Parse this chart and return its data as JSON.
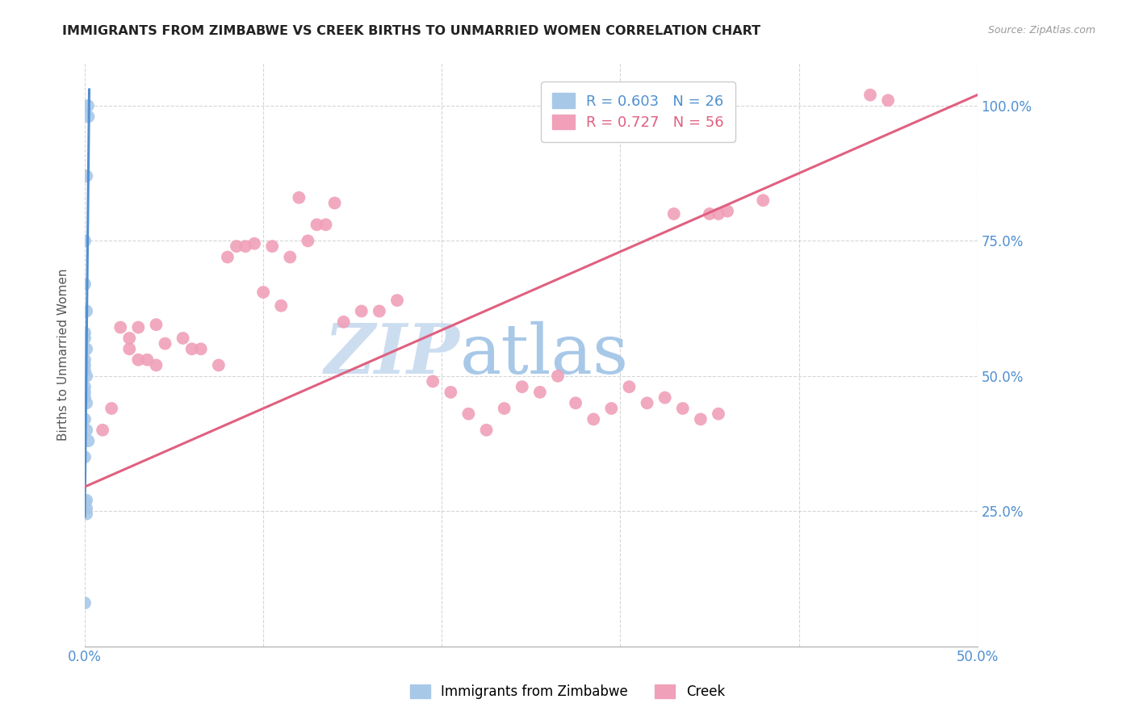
{
  "title": "IMMIGRANTS FROM ZIMBABWE VS CREEK BIRTHS TO UNMARRIED WOMEN CORRELATION CHART",
  "source": "Source: ZipAtlas.com",
  "ylabel": "Births to Unmarried Women",
  "legend_label1": "Immigrants from Zimbabwe",
  "legend_label2": "Creek",
  "R1": 0.603,
  "N1": 26,
  "R2": 0.727,
  "N2": 56,
  "color_blue": "#a8c8e8",
  "color_pink": "#f0a0b8",
  "color_blue_line": "#5090d0",
  "color_pink_line": "#e06080",
  "color_axis_label": "#5090d0",
  "background_color": "#ffffff",
  "blue_scatter_x": [
    0.0018,
    0.002,
    0.001,
    0.0,
    0.0,
    0.001,
    0.0,
    0.0,
    0.001,
    0.0,
    0.0,
    0.0,
    0.001,
    0.0,
    0.0,
    0.0,
    0.001,
    0.0,
    0.001,
    0.002,
    0.0,
    0.001,
    0.0,
    0.001,
    0.001,
    0.0
  ],
  "blue_scatter_y": [
    1.0,
    0.98,
    0.87,
    0.75,
    0.67,
    0.62,
    0.58,
    0.57,
    0.55,
    0.53,
    0.52,
    0.51,
    0.5,
    0.48,
    0.47,
    0.46,
    0.45,
    0.42,
    0.4,
    0.38,
    0.35,
    0.27,
    0.265,
    0.255,
    0.245,
    0.08
  ],
  "pink_scatter_x": [
    0.44,
    0.45,
    0.38,
    0.355,
    0.36,
    0.33,
    0.12,
    0.13,
    0.35,
    0.115,
    0.105,
    0.095,
    0.085,
    0.125,
    0.135,
    0.1,
    0.11,
    0.14,
    0.145,
    0.155,
    0.165,
    0.175,
    0.04,
    0.045,
    0.025,
    0.035,
    0.055,
    0.065,
    0.075,
    0.03,
    0.02,
    0.015,
    0.01,
    0.025,
    0.03,
    0.04,
    0.06,
    0.08,
    0.09,
    0.195,
    0.205,
    0.215,
    0.225,
    0.235,
    0.245,
    0.255,
    0.265,
    0.275,
    0.285,
    0.295,
    0.305,
    0.315,
    0.325,
    0.335,
    0.345,
    0.355
  ],
  "pink_scatter_y": [
    1.02,
    1.01,
    0.825,
    0.8,
    0.805,
    0.8,
    0.83,
    0.78,
    0.8,
    0.72,
    0.74,
    0.745,
    0.74,
    0.75,
    0.78,
    0.655,
    0.63,
    0.82,
    0.6,
    0.62,
    0.62,
    0.64,
    0.595,
    0.56,
    0.57,
    0.53,
    0.57,
    0.55,
    0.52,
    0.59,
    0.59,
    0.44,
    0.4,
    0.55,
    0.53,
    0.52,
    0.55,
    0.72,
    0.74,
    0.49,
    0.47,
    0.43,
    0.4,
    0.44,
    0.48,
    0.47,
    0.5,
    0.45,
    0.42,
    0.44,
    0.48,
    0.45,
    0.46,
    0.44,
    0.42,
    0.43
  ],
  "blue_line_x": [
    0.0,
    0.0025
  ],
  "blue_line_y": [
    0.24,
    1.03
  ],
  "pink_line_x": [
    0.0,
    0.5
  ],
  "pink_line_y": [
    0.295,
    1.02
  ],
  "xlim_min": 0.0,
  "xlim_max": 0.5,
  "ylim_min": 0.0,
  "ylim_max": 1.08,
  "xticks": [
    0.0,
    0.1,
    0.2,
    0.3,
    0.4,
    0.5
  ],
  "yticks": [
    0.25,
    0.5,
    0.75,
    1.0
  ]
}
